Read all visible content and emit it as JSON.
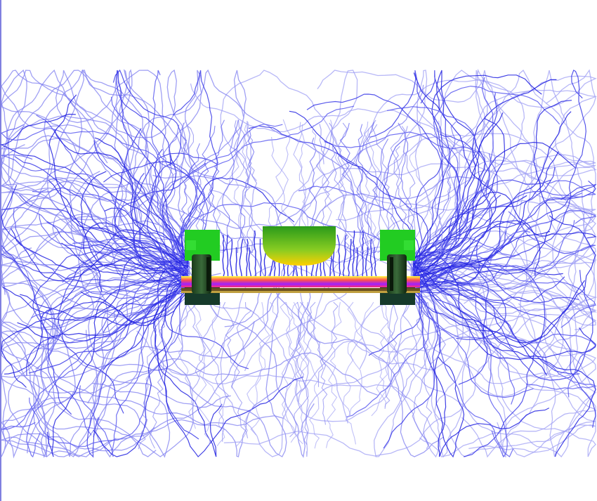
{
  "scene": {
    "background_color": "#ffffff",
    "edge_color": "#8080e0",
    "streamline_colors": [
      "#2020e0",
      "#3a3ae8",
      "#5a5af0",
      "#8080f0",
      "#a0a0f4"
    ],
    "magnet_color": "#22cc22",
    "magnet_dark_color": "#114411",
    "plasma_gradient": [
      "#ffff40",
      "#ff5050",
      "#a020ff",
      "#ff3070"
    ],
    "dish_gradient": [
      "#2a9a1a",
      "#88cc22",
      "#ffd000"
    ],
    "base_color": "#b08830"
  }
}
